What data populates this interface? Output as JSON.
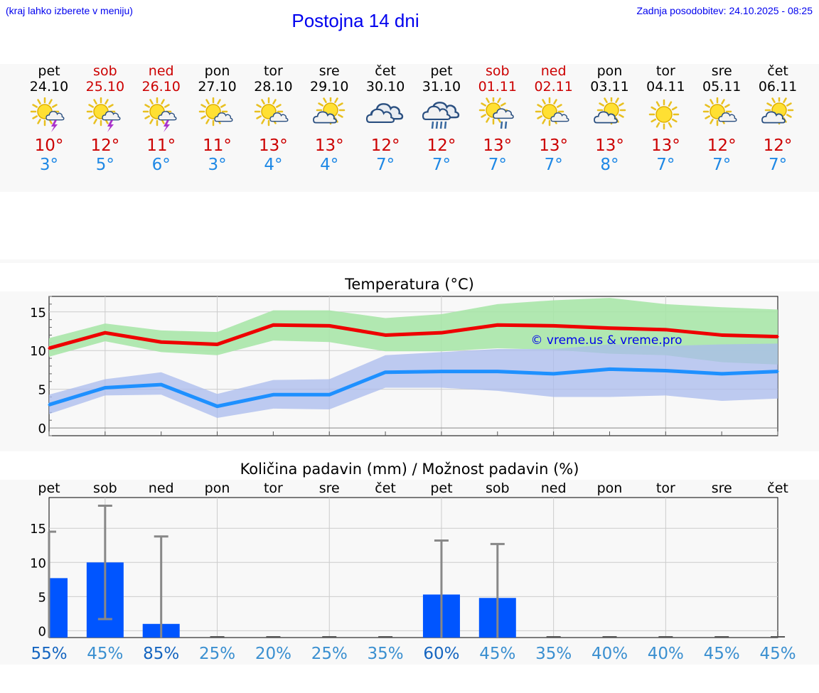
{
  "header": {
    "hint": "(kraj lahko izberete v meniju)",
    "title": "Postojna 14 dni",
    "updated": "Zadnja posodobitev: 24.10.2025 - 08:25"
  },
  "days": [
    {
      "name": "pet",
      "date": "24.10",
      "weekend": false,
      "icon": "sun-cloud-thunder",
      "max": "10°",
      "min": "3°"
    },
    {
      "name": "sob",
      "date": "25.10",
      "weekend": true,
      "icon": "sun-cloud-thunder",
      "max": "12°",
      "min": "5°"
    },
    {
      "name": "ned",
      "date": "26.10",
      "weekend": true,
      "icon": "sun-cloud-thunder",
      "max": "11°",
      "min": "6°"
    },
    {
      "name": "pon",
      "date": "27.10",
      "weekend": false,
      "icon": "sun-small-cloud",
      "max": "11°",
      "min": "3°"
    },
    {
      "name": "tor",
      "date": "28.10",
      "weekend": false,
      "icon": "sun-small-cloud",
      "max": "13°",
      "min": "4°"
    },
    {
      "name": "sre",
      "date": "29.10",
      "weekend": false,
      "icon": "sun-cloud",
      "max": "13°",
      "min": "4°"
    },
    {
      "name": "čet",
      "date": "30.10",
      "weekend": false,
      "icon": "cloudy",
      "max": "12°",
      "min": "7°"
    },
    {
      "name": "pet",
      "date": "31.10",
      "weekend": false,
      "icon": "cloud-rain",
      "max": "12°",
      "min": "7°"
    },
    {
      "name": "sob",
      "date": "01.11",
      "weekend": true,
      "icon": "sun-cloud-rain",
      "max": "13°",
      "min": "7°"
    },
    {
      "name": "ned",
      "date": "02.11",
      "weekend": true,
      "icon": "sun-small-cloud",
      "max": "13°",
      "min": "7°"
    },
    {
      "name": "pon",
      "date": "03.11",
      "weekend": false,
      "icon": "sun-cloud",
      "max": "13°",
      "min": "8°"
    },
    {
      "name": "tor",
      "date": "04.11",
      "weekend": false,
      "icon": "sun",
      "max": "13°",
      "min": "7°"
    },
    {
      "name": "sre",
      "date": "05.11",
      "weekend": false,
      "icon": "sun-small-cloud",
      "max": "12°",
      "min": "7°"
    },
    {
      "name": "čet",
      "date": "06.11",
      "weekend": false,
      "icon": "sun-cloud",
      "max": "12°",
      "min": "7°"
    }
  ],
  "colors": {
    "max": "#ee0000",
    "min": "#1e90ff",
    "max_band": "#a8e6a8",
    "min_band": "#aabbee",
    "bar": "#0055ff",
    "error": "#888888",
    "link": "#0000ee"
  },
  "chart_data": [
    {
      "type": "line",
      "title": "Temperatura (°C)",
      "watermark": "© vreme.us & vreme.pro",
      "x": [
        "24.10",
        "25.10",
        "26.10",
        "27.10",
        "28.10",
        "29.10",
        "30.10",
        "31.10",
        "01.11",
        "02.11",
        "03.11",
        "04.11",
        "05.11",
        "06.11"
      ],
      "ylim": [
        -1,
        17
      ],
      "yticks": [
        0,
        5,
        10,
        15
      ],
      "grid": true,
      "series": [
        {
          "key": "max",
          "values": [
            10.3,
            12.3,
            11.1,
            10.8,
            13.3,
            13.2,
            12.0,
            12.3,
            13.3,
            13.2,
            12.9,
            12.7,
            12.0,
            11.8
          ],
          "band_low": [
            9.2,
            11.2,
            9.8,
            9.4,
            11.3,
            11.1,
            9.9,
            9.9,
            10.3,
            10.1,
            9.6,
            9.4,
            8.5,
            8.2
          ],
          "band_high": [
            11.6,
            13.5,
            12.6,
            12.4,
            15.2,
            15.2,
            14.2,
            14.7,
            16.0,
            16.5,
            16.8,
            16.0,
            15.6,
            15.3
          ]
        },
        {
          "key": "min",
          "values": [
            3.0,
            5.2,
            5.6,
            2.8,
            4.3,
            4.3,
            7.2,
            7.3,
            7.3,
            7.0,
            7.6,
            7.4,
            7.0,
            7.3
          ],
          "band_low": [
            1.8,
            4.2,
            4.3,
            1.3,
            2.5,
            2.4,
            5.2,
            5.2,
            4.8,
            4.0,
            4.0,
            4.2,
            3.5,
            3.8
          ],
          "band_high": [
            4.3,
            6.3,
            7.2,
            4.4,
            6.2,
            6.3,
            9.4,
            9.8,
            10.2,
            10.2,
            10.8,
            10.6,
            10.8,
            10.9
          ]
        }
      ]
    },
    {
      "type": "bar",
      "title": "Količina padavin (mm) / Možnost padavin (%)",
      "categories": [
        "pet",
        "sob",
        "ned",
        "pon",
        "tor",
        "sre",
        "čet",
        "pet",
        "sob",
        "ned",
        "pon",
        "tor",
        "sre",
        "čet"
      ],
      "values": [
        7.7,
        10.0,
        1.0,
        0,
        0,
        0,
        0,
        5.3,
        4.8,
        0,
        0,
        0,
        0,
        0
      ],
      "error_low": [
        0,
        1.7,
        0,
        0,
        0,
        0,
        0,
        0,
        0,
        0,
        0,
        0,
        0,
        0
      ],
      "error_high": [
        14.5,
        18.3,
        13.8,
        0,
        0,
        0,
        0,
        13.2,
        12.7,
        0,
        0,
        0,
        0,
        0
      ],
      "probability": [
        "55%",
        "45%",
        "85%",
        "25%",
        "20%",
        "25%",
        "35%",
        "60%",
        "45%",
        "35%",
        "40%",
        "40%",
        "45%",
        "45%"
      ],
      "probability_color": [
        "#1565c0",
        "#3a8fd0",
        "#1565c0",
        "#3a8fd0",
        "#3a8fd0",
        "#3a8fd0",
        "#3a8fd0",
        "#1565c0",
        "#3a8fd0",
        "#3a8fd0",
        "#3a8fd0",
        "#3a8fd0",
        "#3a8fd0",
        "#3a8fd0"
      ],
      "ylim": [
        -1,
        19.5
      ],
      "yticks": [
        0,
        5,
        10,
        15
      ],
      "grid": true
    }
  ]
}
